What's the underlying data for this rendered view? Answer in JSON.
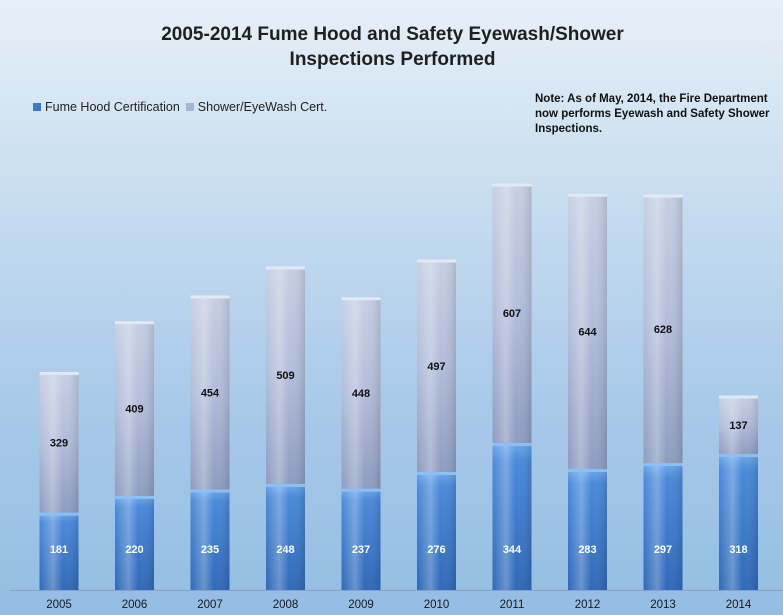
{
  "chart_data": {
    "type": "bar",
    "stacked": true,
    "title": "2005-2014 Fume Hood and Safety Eyewash/Shower Inspections Performed",
    "title_lines": [
      "2005-2014 Fume Hood and Safety Eyewash/Shower",
      "Inspections Performed"
    ],
    "categories": [
      "2005",
      "2006",
      "2007",
      "2008",
      "2009",
      "2010",
      "2011",
      "2012",
      "2013",
      "2014"
    ],
    "series": [
      {
        "name": "Fume Hood Certification",
        "values": [
          181,
          220,
          235,
          248,
          237,
          276,
          344,
          283,
          297,
          318
        ],
        "color": "#3a78c9"
      },
      {
        "name": "Shower/EyeWash Cert.",
        "values": [
          329,
          409,
          454,
          509,
          448,
          497,
          607,
          644,
          628,
          137
        ],
        "color": "#a6b5d6"
      }
    ],
    "ylim": [
      0,
      1000
    ],
    "grid": false,
    "legend_position": "top-left",
    "note": "Note: As of May, 2014, the Fire Department now performs Eyewash and Safety Shower Inspections."
  }
}
